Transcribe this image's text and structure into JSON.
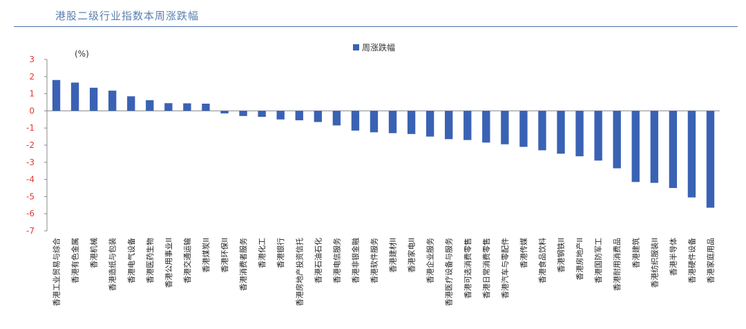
{
  "page_title": "港股二级行业指数本周涨跌幅",
  "colors": {
    "bar": "#3a62b4",
    "axis_text": "#e03a2f",
    "title": "#5a7fb0",
    "rule": "#4a6fa8"
  },
  "chart_data": {
    "type": "bar",
    "title": "港股二级行业指数本周涨跌幅",
    "unit_label": "(%)",
    "legend": [
      "周涨跌幅"
    ],
    "legend_position": "top-center",
    "ylim": [
      -7,
      3
    ],
    "yticks": [
      3,
      2,
      1,
      0,
      -1,
      -2,
      -3,
      -4,
      -5,
      -6,
      -7
    ],
    "grid": false,
    "categories": [
      "香港工业贸易与综合",
      "香港有色金属",
      "香港机械",
      "香港造纸与包装",
      "香港电气设备",
      "香港医药生物",
      "香港公用事业II",
      "香港交通运输",
      "香港煤炭II",
      "香港环保II",
      "香港消费者服务",
      "香港化工",
      "香港银行",
      "香港房地产投资信托",
      "香港石油石化",
      "香港电信服务",
      "香港非银金融",
      "香港软件服务",
      "香港建材II",
      "香港家电II",
      "香港企业服务",
      "香港医疗设备与服务",
      "香港可选消费零售",
      "香港日常消费零售",
      "香港汽车与零配件",
      "香港传媒",
      "香港食品饮料",
      "香港钢铁II",
      "香港房地产II",
      "香港国防军工",
      "香港耐用消费品",
      "香港建筑",
      "香港纺织服装II",
      "香港半导体",
      "香港硬件设备",
      "香港家庭用品"
    ],
    "series": [
      {
        "name": "周涨跌幅",
        "values": [
          1.8,
          1.65,
          1.35,
          1.18,
          0.85,
          0.62,
          0.45,
          0.44,
          0.42,
          -0.15,
          -0.3,
          -0.35,
          -0.5,
          -0.55,
          -0.65,
          -0.85,
          -1.15,
          -1.25,
          -1.3,
          -1.35,
          -1.5,
          -1.65,
          -1.7,
          -1.85,
          -1.95,
          -2.1,
          -2.3,
          -2.5,
          -2.65,
          -2.9,
          -3.35,
          -4.15,
          -4.2,
          -4.5,
          -5.05,
          -5.65
        ]
      }
    ]
  }
}
